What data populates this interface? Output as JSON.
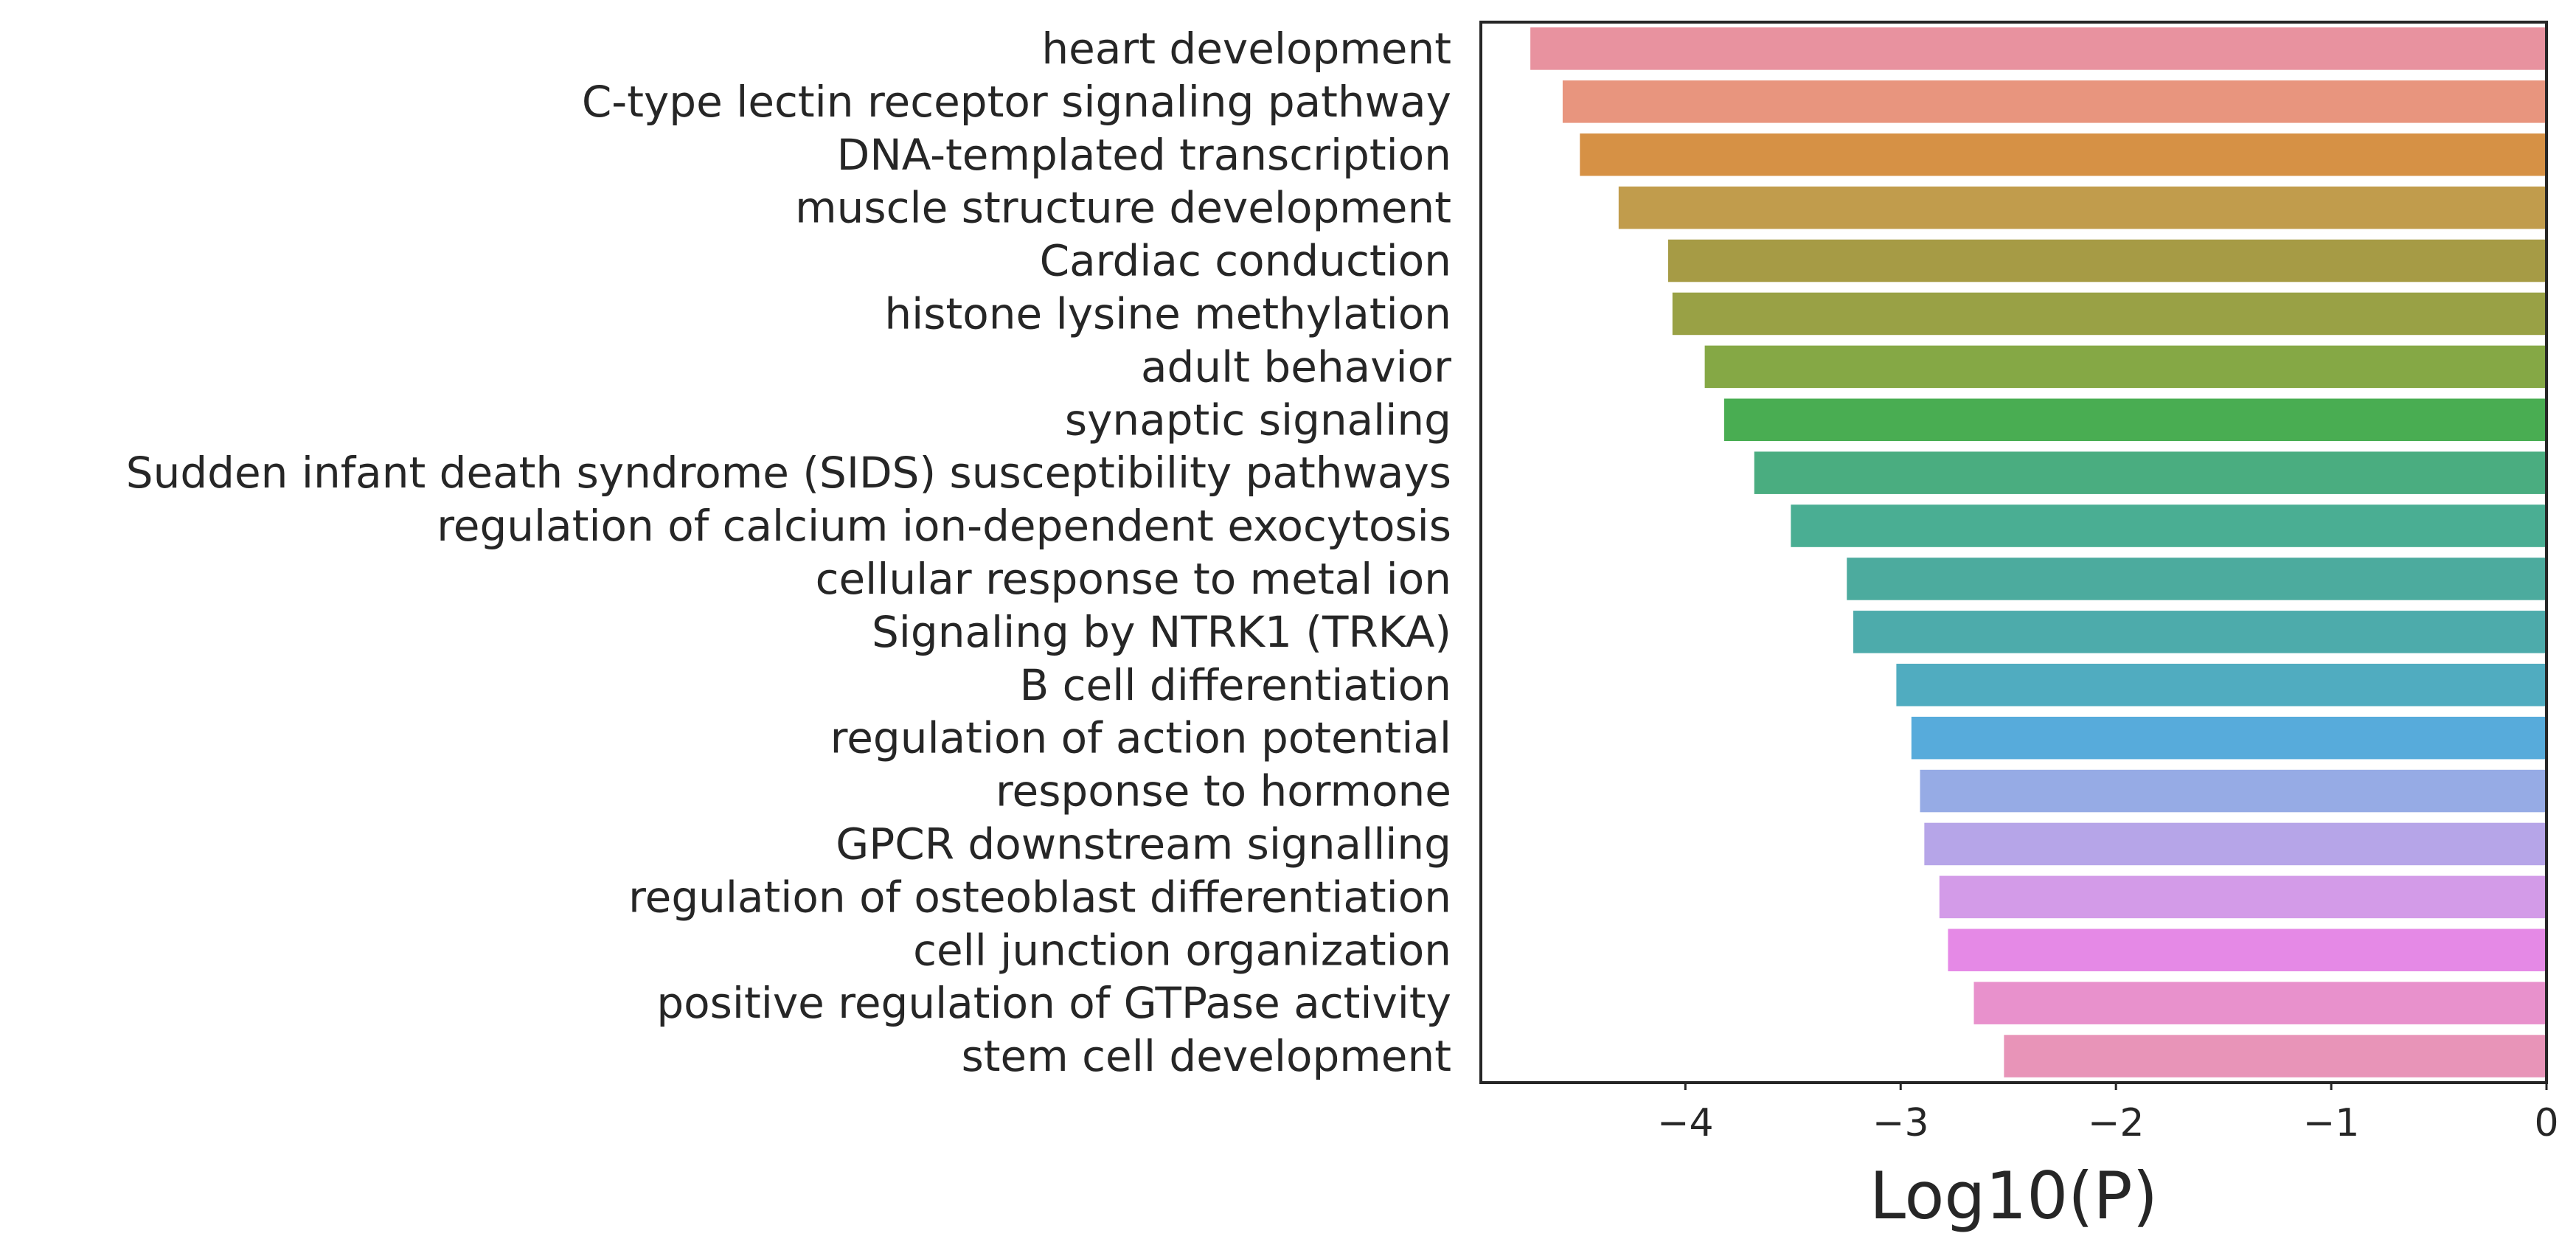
{
  "chart_data": {
    "type": "bar",
    "orientation": "horizontal",
    "title": "",
    "xlabel": "Log10(P)",
    "ylabel": "",
    "xlim": [
      -4.95,
      0
    ],
    "xticks": [
      -4,
      -3,
      -2,
      -1,
      0
    ],
    "xtick_labels": [
      "−4",
      "−3",
      "−2",
      "−1",
      "0"
    ],
    "grid": false,
    "categories": [
      "heart development",
      "C-type lectin receptor signaling pathway",
      "DNA-templated transcription",
      "muscle structure development",
      "Cardiac conduction",
      "histone lysine methylation",
      "adult behavior",
      "synaptic signaling",
      "Sudden infant death syndrome (SIDS) susceptibility pathways",
      "regulation of calcium ion-dependent exocytosis",
      "cellular response to metal ion",
      "Signaling by NTRK1 (TRKA)",
      "B cell differentiation",
      "regulation of action potential",
      "response to hormone",
      "GPCR downstream signalling",
      "regulation of osteoblast differentiation",
      "cell junction organization",
      "positive regulation of GTPase activity",
      "stem cell development"
    ],
    "values": [
      -4.72,
      -4.57,
      -4.49,
      -4.31,
      -4.08,
      -4.06,
      -3.91,
      -3.82,
      -3.68,
      -3.51,
      -3.25,
      -3.22,
      -3.02,
      -2.95,
      -2.91,
      -2.89,
      -2.82,
      -2.78,
      -2.66,
      -2.52
    ],
    "colors": [
      "#e8929f",
      "#e8957e",
      "#d69145",
      "#c19c4c",
      "#a69b45",
      "#99a145",
      "#85a845",
      "#49ad52",
      "#4aad80",
      "#4aae93",
      "#4cab9e",
      "#4dabab",
      "#50acc0",
      "#57abdb",
      "#96abe5",
      "#b6a5e8",
      "#d39be8",
      "#e589e6",
      "#e891cc",
      "#e894b8"
    ]
  }
}
